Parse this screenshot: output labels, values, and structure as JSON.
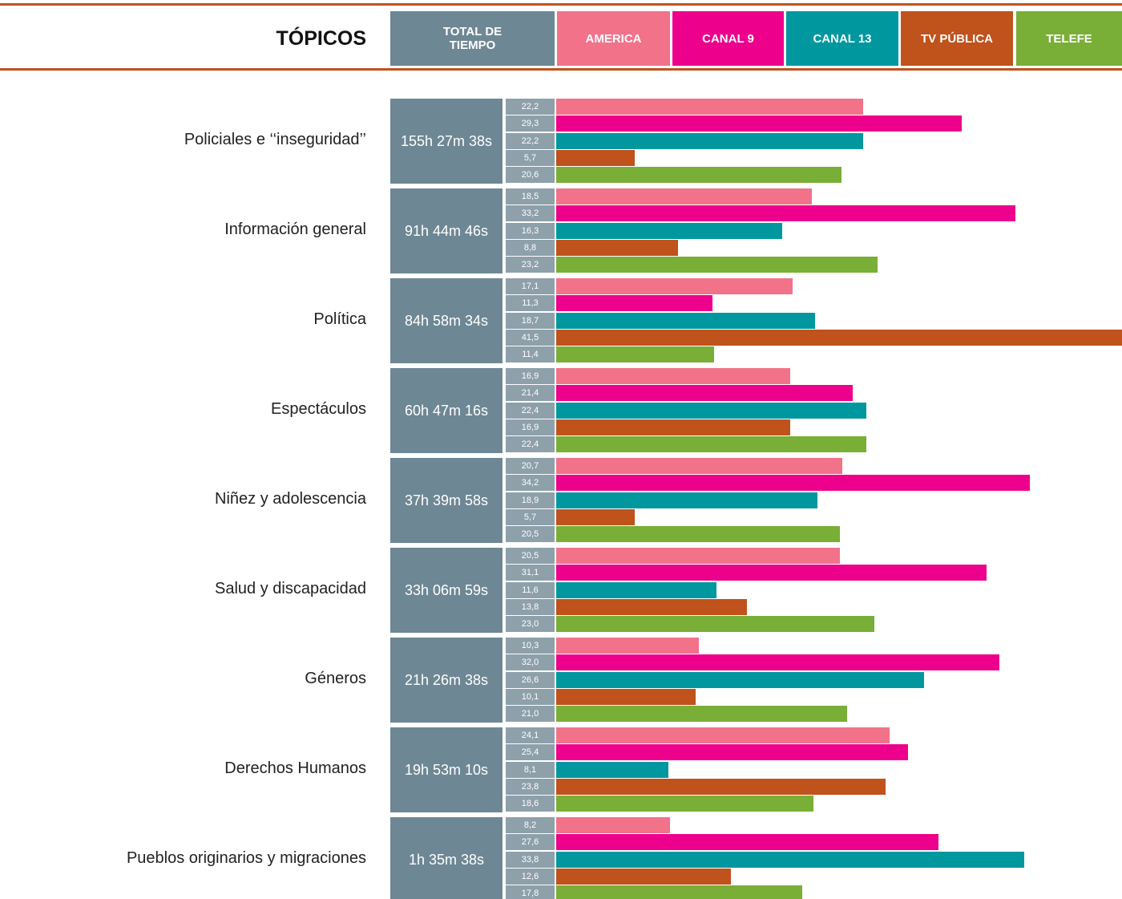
{
  "chart_data": {
    "type": "bar",
    "category_header": "TÓPICOS",
    "total_header": "TOTAL DE TIEMPO",
    "categories": [
      "Policiales e ‘‘inseguridad’’",
      "Información general",
      "Política",
      "Espectáculos",
      "Niñez y adolescencia",
      "Salud y discapacidad",
      "Géneros",
      "Derechos Humanos",
      "Pueblos originarios y migraciones"
    ],
    "totals": [
      "155h 27m 38s",
      "91h 44m 46s",
      "84h 58m 34s",
      "60h 47m 16s",
      "37h 39m 58s",
      "33h 06m 59s",
      "21h 26m 38s",
      "19h 53m 10s",
      "1h 35m 38s"
    ],
    "series": [
      {
        "name": "AMERICA",
        "color": "#f2728a",
        "values": [
          22.2,
          18.5,
          17.1,
          16.9,
          20.7,
          20.5,
          10.3,
          24.1,
          8.2
        ],
        "value_labels": [
          "22,2",
          "18,5",
          "17,1",
          "16,9",
          "20,7",
          "20,5",
          "10,3",
          "24,1",
          "8,2"
        ]
      },
      {
        "name": "CANAL 9",
        "color": "#ec008c",
        "values": [
          29.3,
          33.2,
          11.3,
          21.4,
          34.2,
          31.1,
          32.0,
          25.4,
          27.6
        ],
        "value_labels": [
          "29,3",
          "33,2",
          "11,3",
          "21,4",
          "34,2",
          "31,1",
          "32,0",
          "25,4",
          "27,6"
        ]
      },
      {
        "name": "CANAL 13",
        "color": "#00979f",
        "values": [
          22.2,
          16.3,
          18.7,
          22.4,
          18.9,
          11.6,
          26.6,
          8.1,
          33.8
        ],
        "value_labels": [
          "22,2",
          "16,3",
          "18,7",
          "22,4",
          "18,9",
          "11,6",
          "26,6",
          "8,1",
          "33,8"
        ]
      },
      {
        "name": "TV PÚBLICA",
        "color": "#c0521c",
        "values": [
          5.7,
          8.8,
          41.5,
          16.9,
          5.7,
          13.8,
          10.1,
          23.8,
          12.6
        ],
        "value_labels": [
          "5,7",
          "8,8",
          "41,5",
          "16,9",
          "5,7",
          "13,8",
          "10,1",
          "23,8",
          "12,6"
        ]
      },
      {
        "name": "TELEFE",
        "color": "#79ae37",
        "values": [
          20.6,
          23.2,
          11.4,
          22.4,
          20.5,
          23.0,
          21.0,
          18.6,
          17.8
        ],
        "value_labels": [
          "20,6",
          "23,2",
          "11,4",
          "22,4",
          "20,5",
          "23,0",
          "21,0",
          "18,6",
          "17,8"
        ]
      }
    ]
  }
}
